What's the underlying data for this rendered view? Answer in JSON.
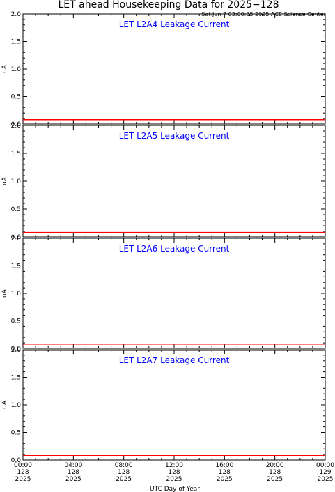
{
  "header": {
    "title": "LET ahead Housekeeping Data for 2025−128",
    "timestamp": "Sat Jun  7 03:00:35 2025 ACE Science Center"
  },
  "colors": {
    "background": "#ffffff",
    "axes": "#000000",
    "series": "#ff0000",
    "panel_title": "#0000ff"
  },
  "xaxis": {
    "label": "UTC Day of Year",
    "range_hours": [
      0,
      24
    ],
    "ticks": [
      {
        "time": "00:00",
        "doy": "128",
        "year": "2025"
      },
      {
        "time": "04:00",
        "doy": "128",
        "year": "2025"
      },
      {
        "time": "08:00",
        "doy": "128",
        "year": "2025"
      },
      {
        "time": "12:00",
        "doy": "128",
        "year": "2025"
      },
      {
        "time": "16:00",
        "doy": "128",
        "year": "2025"
      },
      {
        "time": "20:00",
        "doy": "128",
        "year": "2025"
      },
      {
        "time": "00:00",
        "doy": "129",
        "year": "2025"
      }
    ]
  },
  "chart_data": [
    {
      "type": "line",
      "title": "LET L2A4 Leakage Current",
      "ylabel": "uA",
      "ylim": [
        0,
        2
      ],
      "yticks": [
        "0.0",
        "0.5",
        "1.0",
        "1.5",
        "2.0"
      ],
      "x": [
        0,
        24
      ],
      "y": [
        0.08,
        0.08
      ],
      "grid": false
    },
    {
      "type": "line",
      "title": "LET L2A5 Leakage Current",
      "ylabel": "uA",
      "ylim": [
        0,
        2
      ],
      "yticks": [
        "0.0",
        "0.5",
        "1.0",
        "1.5",
        "2.0"
      ],
      "x": [
        0,
        24
      ],
      "y": [
        0.08,
        0.08
      ],
      "grid": false
    },
    {
      "type": "line",
      "title": "LET L2A6 Leakage Current",
      "ylabel": "uA",
      "ylim": [
        0,
        2
      ],
      "yticks": [
        "0.0",
        "0.5",
        "1.0",
        "1.5",
        "2.0"
      ],
      "x": [
        0,
        24
      ],
      "y": [
        0.08,
        0.08
      ],
      "grid": false
    },
    {
      "type": "line",
      "title": "LET L2A7 Leakage Current",
      "ylabel": "uA",
      "ylim": [
        0,
        2
      ],
      "yticks": [
        "0.0",
        "0.5",
        "1.0",
        "1.5",
        "2.0"
      ],
      "x": [
        0,
        24
      ],
      "y": [
        0.08,
        0.08
      ],
      "grid": false
    }
  ]
}
